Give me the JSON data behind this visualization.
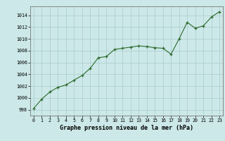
{
  "x": [
    0,
    1,
    2,
    3,
    4,
    5,
    6,
    7,
    8,
    9,
    10,
    11,
    12,
    13,
    14,
    15,
    16,
    17,
    18,
    19,
    20,
    21,
    22,
    23
  ],
  "y": [
    998.2,
    999.8,
    1001.0,
    1001.8,
    1002.2,
    1003.0,
    1003.8,
    1005.0,
    1006.8,
    1007.0,
    1008.2,
    1008.4,
    1008.6,
    1008.8,
    1008.7,
    1008.5,
    1008.4,
    1007.4,
    1010.0,
    1012.8,
    1011.8,
    1012.2,
    1013.7,
    1014.6
  ],
  "line_color": "#2d6a2d",
  "marker_color": "#2d6a2d",
  "bg_color": "#cce8e8",
  "grid_color": "#aacccc",
  "xlabel": "Graphe pression niveau de la mer (hPa)",
  "ylim": [
    997,
    1015.5
  ],
  "xlim": [
    -0.4,
    23.4
  ],
  "yticks": [
    998,
    1000,
    1002,
    1004,
    1006,
    1008,
    1010,
    1012,
    1014
  ],
  "xticks": [
    0,
    1,
    2,
    3,
    4,
    5,
    6,
    7,
    8,
    9,
    10,
    11,
    12,
    13,
    14,
    15,
    16,
    17,
    18,
    19,
    20,
    21,
    22,
    23
  ]
}
